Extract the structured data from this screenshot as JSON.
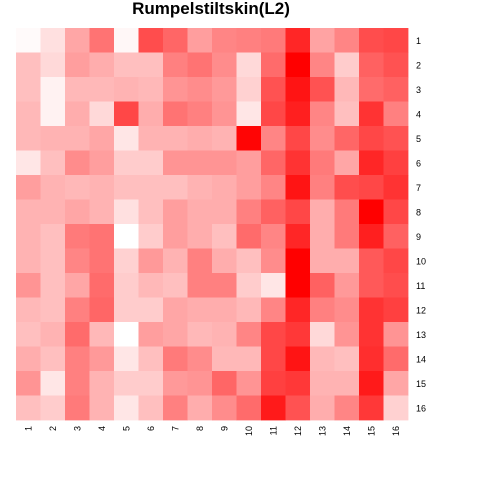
{
  "chart_data": {
    "type": "heatmap",
    "title": "Rumpelstiltskin(L2)",
    "xlabel": "",
    "ylabel": "",
    "x_labels": [
      "1",
      "2",
      "3",
      "4",
      "5",
      "6",
      "7",
      "8",
      "9",
      "10",
      "11",
      "12",
      "13",
      "14",
      "15",
      "16"
    ],
    "y_labels": [
      "1",
      "2",
      "3",
      "4",
      "5",
      "6",
      "7",
      "8",
      "9",
      "10",
      "11",
      "12",
      "13",
      "14",
      "15",
      "16"
    ],
    "color_scale": {
      "low": "#ffffff",
      "high": "#ff0000",
      "range": [
        0,
        1
      ]
    },
    "legend": "none",
    "grid": false,
    "values": [
      [
        0.02,
        0.12,
        0.35,
        0.55,
        0.03,
        0.7,
        0.6,
        0.38,
        0.48,
        0.5,
        0.52,
        0.85,
        0.36,
        0.48,
        0.7,
        0.72
      ],
      [
        0.25,
        0.15,
        0.38,
        0.32,
        0.25,
        0.25,
        0.5,
        0.55,
        0.45,
        0.15,
        0.58,
        1.0,
        0.48,
        0.2,
        0.62,
        0.68
      ],
      [
        0.25,
        0.05,
        0.28,
        0.28,
        0.3,
        0.28,
        0.42,
        0.45,
        0.4,
        0.18,
        0.68,
        0.92,
        0.68,
        0.28,
        0.58,
        0.62
      ],
      [
        0.28,
        0.05,
        0.32,
        0.15,
        0.72,
        0.32,
        0.55,
        0.5,
        0.42,
        0.1,
        0.72,
        0.88,
        0.48,
        0.25,
        0.8,
        0.5
      ],
      [
        0.28,
        0.3,
        0.3,
        0.35,
        0.1,
        0.3,
        0.3,
        0.32,
        0.3,
        0.98,
        0.48,
        0.72,
        0.45,
        0.6,
        0.72,
        0.68
      ],
      [
        0.1,
        0.25,
        0.45,
        0.38,
        0.2,
        0.2,
        0.42,
        0.42,
        0.42,
        0.38,
        0.6,
        0.8,
        0.52,
        0.35,
        0.85,
        0.75
      ],
      [
        0.38,
        0.3,
        0.28,
        0.3,
        0.25,
        0.25,
        0.25,
        0.3,
        0.32,
        0.38,
        0.48,
        0.92,
        0.5,
        0.7,
        0.72,
        0.8
      ],
      [
        0.3,
        0.3,
        0.35,
        0.3,
        0.12,
        0.25,
        0.38,
        0.32,
        0.32,
        0.5,
        0.62,
        0.72,
        0.32,
        0.52,
        1.0,
        0.72
      ],
      [
        0.3,
        0.25,
        0.52,
        0.55,
        0.0,
        0.2,
        0.38,
        0.32,
        0.25,
        0.58,
        0.48,
        0.85,
        0.32,
        0.52,
        0.88,
        0.62
      ],
      [
        0.3,
        0.25,
        0.48,
        0.55,
        0.18,
        0.4,
        0.3,
        0.5,
        0.32,
        0.25,
        0.45,
        1.0,
        0.32,
        0.32,
        0.65,
        0.72
      ],
      [
        0.42,
        0.25,
        0.35,
        0.58,
        0.2,
        0.28,
        0.25,
        0.5,
        0.5,
        0.2,
        0.1,
        1.0,
        0.62,
        0.4,
        0.65,
        0.7
      ],
      [
        0.28,
        0.25,
        0.5,
        0.6,
        0.2,
        0.2,
        0.35,
        0.32,
        0.32,
        0.28,
        0.48,
        0.85,
        0.5,
        0.45,
        0.8,
        0.75
      ],
      [
        0.25,
        0.3,
        0.58,
        0.28,
        0.0,
        0.38,
        0.35,
        0.28,
        0.3,
        0.48,
        0.72,
        0.78,
        0.15,
        0.42,
        0.8,
        0.42
      ],
      [
        0.32,
        0.25,
        0.5,
        0.4,
        0.1,
        0.25,
        0.52,
        0.45,
        0.28,
        0.28,
        0.72,
        0.92,
        0.28,
        0.25,
        0.82,
        0.58
      ],
      [
        0.42,
        0.1,
        0.5,
        0.3,
        0.2,
        0.2,
        0.4,
        0.42,
        0.6,
        0.42,
        0.75,
        0.78,
        0.3,
        0.3,
        0.9,
        0.35
      ],
      [
        0.25,
        0.2,
        0.52,
        0.3,
        0.1,
        0.25,
        0.5,
        0.32,
        0.45,
        0.58,
        0.9,
        0.68,
        0.32,
        0.48,
        0.78,
        0.18
      ]
    ]
  }
}
